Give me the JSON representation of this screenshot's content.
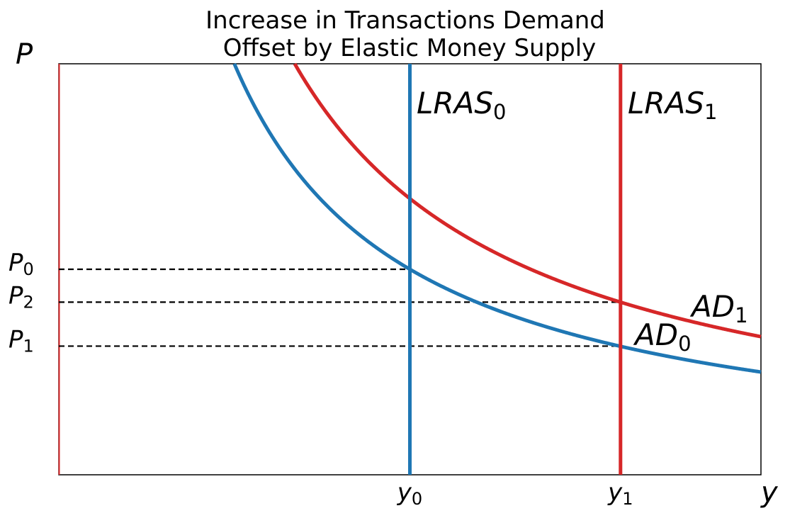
{
  "chart_data": {
    "type": "line",
    "title_lines": [
      "Increase in Transactions Demand",
      "Offset by Elastic Money Supply"
    ],
    "ylabel": "P",
    "xlabel": "y",
    "colors": {
      "AD0": "#1f77b4",
      "AD1": "#d62728",
      "LRAS0": "#1f77b4",
      "LRAS1": "#d62728",
      "guides": "#000000"
    },
    "xlim": [
      0,
      1
    ],
    "ylim": [
      0,
      1
    ],
    "x_ticks": [
      {
        "base": "y",
        "sub": "0",
        "value": 0.5
      },
      {
        "base": "y",
        "sub": "1",
        "value": 0.8
      }
    ],
    "y_ticks": [
      {
        "base": "P",
        "sub": "0",
        "value": 0.5
      },
      {
        "base": "P",
        "sub": "2",
        "value": 0.42
      },
      {
        "base": "P",
        "sub": "1",
        "value": 0.313
      }
    ],
    "series": [
      {
        "key": "AD0",
        "base": "AD",
        "sub": "0",
        "k": 0.25
      },
      {
        "key": "AD1",
        "base": "AD",
        "sub": "1",
        "k": 0.336
      }
    ],
    "verticals": [
      {
        "key": "LRAS0",
        "base": "LRAS",
        "sub": "0",
        "x": 0.5
      },
      {
        "key": "LRAS1",
        "base": "LRAS",
        "sub": "1",
        "x": 0.8
      }
    ],
    "guides": [
      {
        "y": 0.5,
        "x_end": 0.5
      },
      {
        "y": 0.42,
        "x_end": 0.8
      },
      {
        "y": 0.313,
        "x_end": 0.8
      }
    ]
  }
}
